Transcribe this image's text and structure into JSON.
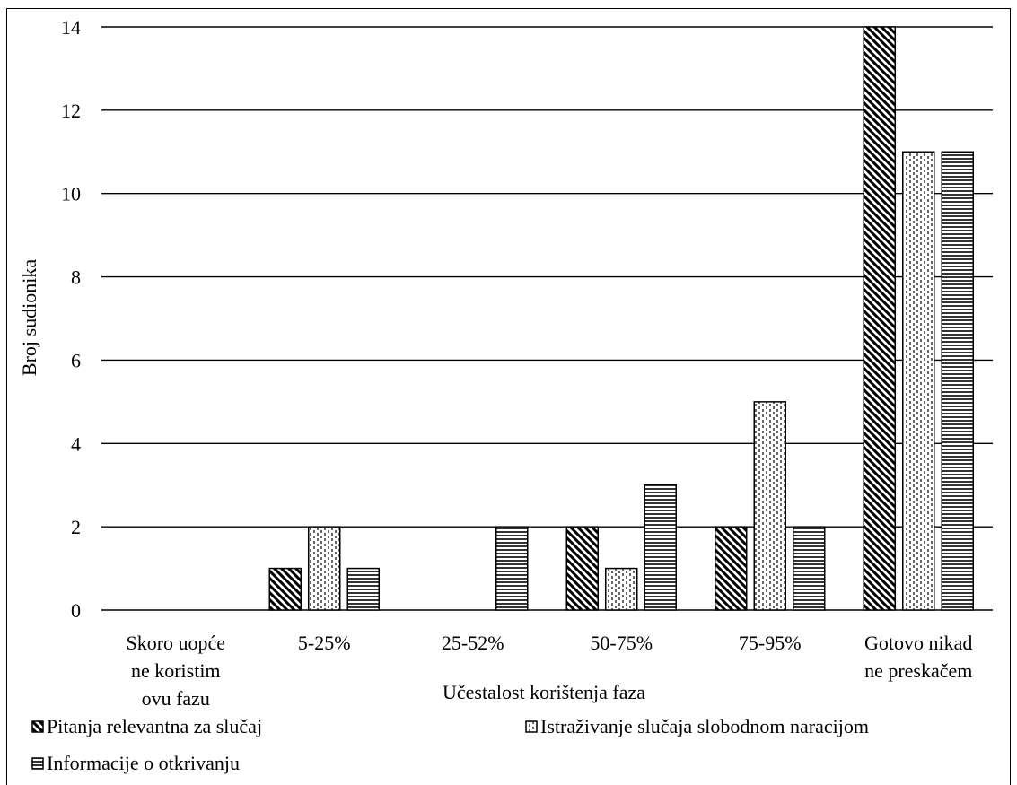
{
  "chart_data": {
    "type": "bar",
    "title": "",
    "xlabel": "Učestalost korištenja faza",
    "ylabel": "Broj sudionika",
    "ylim": [
      0,
      14
    ],
    "yticks": [
      0,
      2,
      4,
      6,
      8,
      10,
      12,
      14
    ],
    "grid": true,
    "legend_position": "bottom",
    "categories": [
      [
        "Skoro uopće",
        "ne koristim",
        "ovu fazu"
      ],
      [
        "5-25%"
      ],
      [
        "25-52%"
      ],
      [
        "50-75%"
      ],
      [
        "75-95%"
      ],
      [
        "Gotovo nikad",
        "ne preskačem"
      ]
    ],
    "series": [
      {
        "name": "Pitanja relevantna za slučaj",
        "pattern": "diagonal",
        "values": [
          0,
          1,
          0,
          2,
          2,
          14
        ]
      },
      {
        "name": "Istraživanje slučaja slobodnom naracijom",
        "pattern": "dotted",
        "values": [
          0,
          2,
          0,
          1,
          5,
          11
        ]
      },
      {
        "name": "Informacije o otkrivanju",
        "pattern": "horizontal",
        "values": [
          0,
          1,
          2,
          3,
          2,
          11
        ]
      }
    ],
    "colors": {
      "ink": "#000000",
      "background": "#ffffff"
    }
  }
}
